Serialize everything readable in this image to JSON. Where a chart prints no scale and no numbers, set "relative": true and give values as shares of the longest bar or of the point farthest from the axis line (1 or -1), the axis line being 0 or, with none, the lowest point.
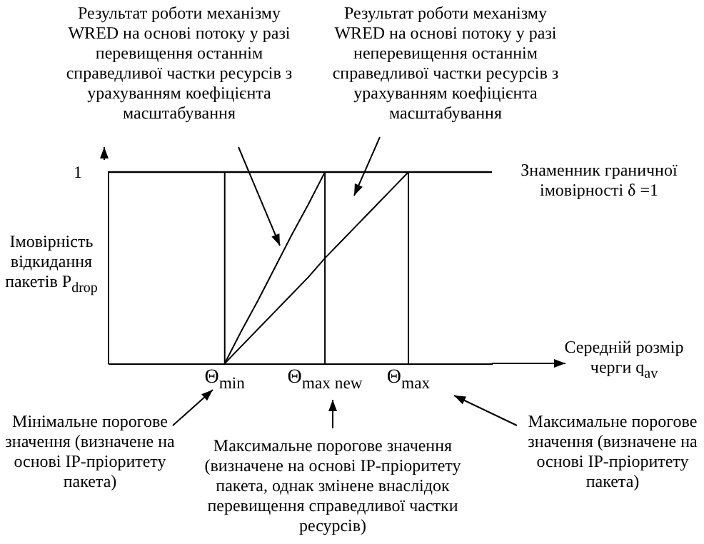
{
  "chart_data": {
    "type": "line",
    "relative": true,
    "xlabel": "Середній розмір черги q$_{av}$",
    "ylabel": "Імовірність відкидання пакетів P$_{drop}$",
    "categories": [
      null,
      null,
      null,
      null,
      null,
      null,
      null,
      "Θ$_{min}$",
      null,
      null,
      null,
      null,
      null,
      "Θ$_{max new}$",
      null,
      null,
      null,
      null,
      "Θ$_{max}$",
      null,
      null,
      null,
      null,
      null
    ],
    "series": [
      {
        "color": "#000000",
        "values": [
          null,
          null,
          null,
          null,
          null,
          null,
          null,
          0,
          0.17,
          0.33,
          0.5,
          0.67,
          0.83,
          1,
          null,
          null,
          null,
          null,
          null,
          null,
          null,
          null,
          null,
          null
        ]
      },
      {
        "color": "#000000",
        "values": [
          null,
          null,
          null,
          null,
          null,
          null,
          null,
          0,
          0.09,
          0.18,
          0.27,
          0.36,
          0.45,
          0.55,
          0.64,
          0.73,
          0.82,
          0.91,
          1,
          null,
          null,
          null,
          null,
          null
        ]
      }
    ],
    "ref_lines": [
      {
        "axis": "y",
        "value": 1,
        "label": "1"
      },
      {
        "axis": "x",
        "value": "Θ$_{min}$"
      },
      {
        "axis": "x",
        "value": "Θ$_{max new}$"
      },
      {
        "axis": "x",
        "value": "Θ$_{max}$"
      }
    ],
    "annotations": [
      "Результат роботи механізму WRED на основі потоку у разі перевищення останнім справедливої частки ресурсів з урахуванням коефіцієнта масштабування",
      "Результат роботи механізму WRED на основі потоку у разі неперевищення останнім справедливої частки ресурсів з урахуванням коефіцієнта масштабування",
      "Мінімальне порогове значення (визначене на основі IP-пріоритету пакета)",
      "Максимальне порогове значення (визначене на основі IP-пріоритету пакета, однак змінене внаслідок перевищення справедливої частки ресурсів)",
      "Максимальне порогове значення (визначене на основі IP-пріоритету пакета)",
      "Знаменник граничної імовірності δ =1"
    ]
  }
}
